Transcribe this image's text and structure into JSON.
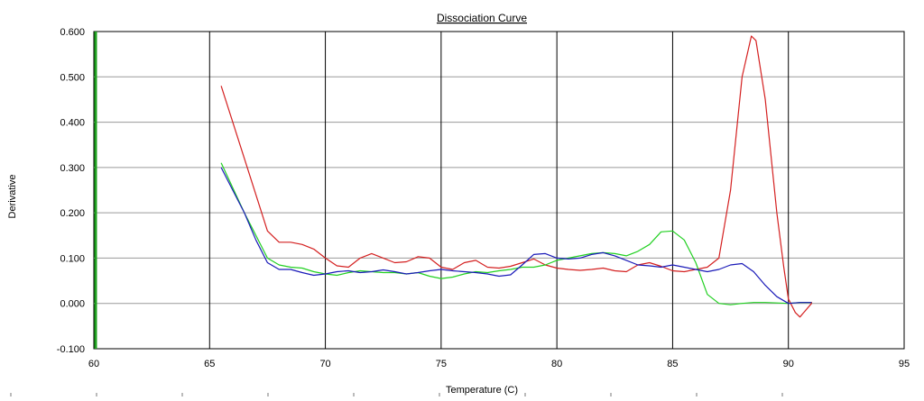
{
  "chart_data": {
    "type": "line",
    "title": "Dissociation Curve",
    "xlabel": "Temperature (C)",
    "ylabel": "Derivative",
    "xlim": [
      60,
      95
    ],
    "ylim": [
      -0.1,
      0.6
    ],
    "x_ticks": [
      "60",
      "65",
      "70",
      "75",
      "80",
      "85",
      "90",
      "95"
    ],
    "y_ticks": [
      "-0.100",
      "0.000",
      "0.100",
      "0.200",
      "0.300",
      "0.400",
      "0.500",
      "0.600"
    ],
    "grid": true,
    "colors": {
      "red": "#d42020",
      "green": "#22d022",
      "blue": "#1a1ab8",
      "y_axis_line": "#1fa01f",
      "grid": "#9a9a9a"
    },
    "series": [
      {
        "color": "#d42020",
        "points": [
          [
            65.5,
            0.48
          ],
          [
            66.5,
            0.32
          ],
          [
            67.5,
            0.16
          ],
          [
            68,
            0.135
          ],
          [
            68.5,
            0.135
          ],
          [
            69,
            0.13
          ],
          [
            69.5,
            0.12
          ],
          [
            70,
            0.1
          ],
          [
            70.5,
            0.083
          ],
          [
            71,
            0.08
          ],
          [
            71.5,
            0.1
          ],
          [
            72,
            0.11
          ],
          [
            72.5,
            0.1
          ],
          [
            73,
            0.09
          ],
          [
            73.5,
            0.092
          ],
          [
            74,
            0.103
          ],
          [
            74.5,
            0.1
          ],
          [
            75,
            0.08
          ],
          [
            75.5,
            0.075
          ],
          [
            76,
            0.09
          ],
          [
            76.5,
            0.095
          ],
          [
            77,
            0.08
          ],
          [
            77.5,
            0.078
          ],
          [
            78,
            0.082
          ],
          [
            78.5,
            0.09
          ],
          [
            79,
            0.098
          ],
          [
            79.5,
            0.085
          ],
          [
            80,
            0.078
          ],
          [
            80.5,
            0.075
          ],
          [
            81,
            0.073
          ],
          [
            81.5,
            0.075
          ],
          [
            82,
            0.078
          ],
          [
            82.5,
            0.072
          ],
          [
            83,
            0.07
          ],
          [
            83.5,
            0.085
          ],
          [
            84,
            0.09
          ],
          [
            84.5,
            0.082
          ],
          [
            85,
            0.072
          ],
          [
            85.5,
            0.07
          ],
          [
            86,
            0.075
          ],
          [
            86.5,
            0.08
          ],
          [
            87,
            0.1
          ],
          [
            87.5,
            0.25
          ],
          [
            88,
            0.5
          ],
          [
            88.4,
            0.59
          ],
          [
            88.6,
            0.58
          ],
          [
            89,
            0.45
          ],
          [
            89.5,
            0.2
          ],
          [
            89.8,
            0.08
          ],
          [
            90,
            0.01
          ],
          [
            90.3,
            -0.02
          ],
          [
            90.5,
            -0.03
          ],
          [
            91,
            0.0
          ],
          [
            91,
            0.003
          ]
        ]
      },
      {
        "color": "#22d022",
        "points": [
          [
            65.5,
            0.31
          ],
          [
            66.5,
            0.2
          ],
          [
            67.5,
            0.1
          ],
          [
            68,
            0.085
          ],
          [
            68.5,
            0.08
          ],
          [
            69,
            0.078
          ],
          [
            69.5,
            0.07
          ],
          [
            70,
            0.065
          ],
          [
            70.5,
            0.062
          ],
          [
            71,
            0.068
          ],
          [
            71.5,
            0.072
          ],
          [
            72,
            0.07
          ],
          [
            72.5,
            0.068
          ],
          [
            73,
            0.068
          ],
          [
            73.5,
            0.065
          ],
          [
            74,
            0.068
          ],
          [
            74.5,
            0.06
          ],
          [
            75,
            0.055
          ],
          [
            75.5,
            0.058
          ],
          [
            76,
            0.065
          ],
          [
            76.5,
            0.07
          ],
          [
            77,
            0.068
          ],
          [
            77.5,
            0.072
          ],
          [
            78,
            0.075
          ],
          [
            78.5,
            0.08
          ],
          [
            79,
            0.08
          ],
          [
            79.5,
            0.085
          ],
          [
            80,
            0.095
          ],
          [
            80.5,
            0.1
          ],
          [
            81,
            0.105
          ],
          [
            81.5,
            0.11
          ],
          [
            82,
            0.112
          ],
          [
            82.5,
            0.11
          ],
          [
            83,
            0.105
          ],
          [
            83.5,
            0.115
          ],
          [
            84,
            0.13
          ],
          [
            84.5,
            0.158
          ],
          [
            85,
            0.16
          ],
          [
            85.5,
            0.14
          ],
          [
            86,
            0.09
          ],
          [
            86.5,
            0.02
          ],
          [
            87,
            0.0
          ],
          [
            87.5,
            -0.003
          ],
          [
            88,
            0.0
          ],
          [
            88.5,
            0.002
          ],
          [
            89,
            0.002
          ],
          [
            89.5,
            0.001
          ],
          [
            90,
            0.0
          ],
          [
            90.5,
            0.002
          ],
          [
            91,
            0.002
          ]
        ]
      },
      {
        "color": "#1a1ab8",
        "points": [
          [
            65.5,
            0.3
          ],
          [
            66,
            0.25
          ],
          [
            66.5,
            0.2
          ],
          [
            67,
            0.14
          ],
          [
            67.5,
            0.09
          ],
          [
            68,
            0.075
          ],
          [
            68.5,
            0.075
          ],
          [
            69,
            0.068
          ],
          [
            69.5,
            0.062
          ],
          [
            70,
            0.065
          ],
          [
            70.5,
            0.07
          ],
          [
            71,
            0.072
          ],
          [
            71.5,
            0.068
          ],
          [
            72,
            0.07
          ],
          [
            72.5,
            0.074
          ],
          [
            73,
            0.07
          ],
          [
            73.5,
            0.065
          ],
          [
            74,
            0.068
          ],
          [
            74.5,
            0.072
          ],
          [
            75,
            0.075
          ],
          [
            75.5,
            0.072
          ],
          [
            76,
            0.07
          ],
          [
            76.5,
            0.068
          ],
          [
            77,
            0.065
          ],
          [
            77.5,
            0.06
          ],
          [
            78,
            0.063
          ],
          [
            78.5,
            0.085
          ],
          [
            79,
            0.108
          ],
          [
            79.5,
            0.11
          ],
          [
            80,
            0.1
          ],
          [
            80.5,
            0.098
          ],
          [
            81,
            0.1
          ],
          [
            81.5,
            0.108
          ],
          [
            82,
            0.112
          ],
          [
            82.5,
            0.105
          ],
          [
            83,
            0.095
          ],
          [
            83.5,
            0.085
          ],
          [
            84,
            0.083
          ],
          [
            84.5,
            0.08
          ],
          [
            85,
            0.085
          ],
          [
            85.5,
            0.08
          ],
          [
            86,
            0.075
          ],
          [
            86.5,
            0.07
          ],
          [
            87,
            0.075
          ],
          [
            87.5,
            0.085
          ],
          [
            88,
            0.088
          ],
          [
            88.5,
            0.07
          ],
          [
            89,
            0.04
          ],
          [
            89.5,
            0.015
          ],
          [
            90,
            0.0
          ],
          [
            90.5,
            0.002
          ],
          [
            91,
            0.002
          ]
        ]
      }
    ]
  }
}
